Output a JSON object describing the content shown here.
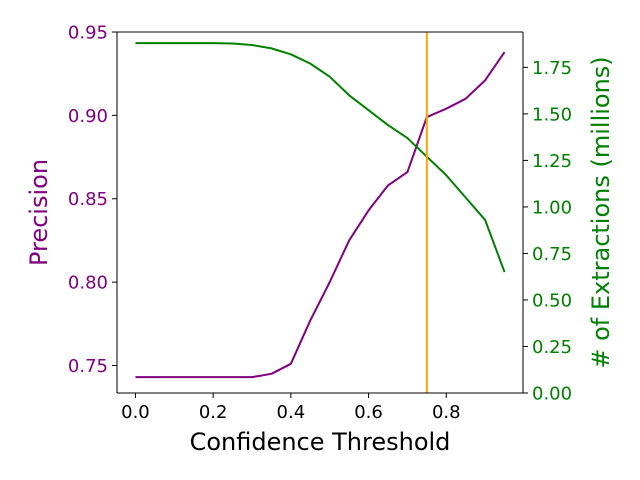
{
  "chart_data": {
    "type": "line",
    "xlabel": "Confidence Threshold",
    "ylabel_left": "Precision",
    "ylabel_right": "# of Extractions (millions)",
    "xlim": [
      -0.0475,
      0.9975
    ],
    "ylim_left": [
      0.7335,
      0.95
    ],
    "ylim_right": [
      0.0,
      1.94
    ],
    "x_ticks": [
      0.0,
      0.2,
      0.4,
      0.6,
      0.8
    ],
    "x_tick_labels": [
      "0.0",
      "0.2",
      "0.4",
      "0.6",
      "0.8"
    ],
    "y_left_ticks": [
      0.75,
      0.8,
      0.85,
      0.9,
      0.95
    ],
    "y_left_tick_labels": [
      "0.75",
      "0.80",
      "0.85",
      "0.90",
      "0.95"
    ],
    "y_right_ticks": [
      0.0,
      0.25,
      0.5,
      0.75,
      1.0,
      1.25,
      1.5,
      1.75
    ],
    "y_right_tick_labels": [
      "0.00",
      "0.25",
      "0.50",
      "0.75",
      "1.00",
      "1.25",
      "1.50",
      "1.75"
    ],
    "vline_x": 0.75,
    "grid": false,
    "colors": {
      "precision": "#800080",
      "extractions": "#008000",
      "vline": "#FFA500",
      "left_axis_text": "#800080",
      "right_axis_text": "#008000"
    },
    "series": [
      {
        "axis": "left",
        "color_key": "precision",
        "x": [
          0.0,
          0.05,
          0.1,
          0.15,
          0.2,
          0.25,
          0.3,
          0.35,
          0.4,
          0.45,
          0.5,
          0.55,
          0.6,
          0.65,
          0.7,
          0.75,
          0.8,
          0.85,
          0.9,
          0.95
        ],
        "values": [
          0.743,
          0.743,
          0.743,
          0.743,
          0.743,
          0.743,
          0.743,
          0.745,
          0.751,
          0.777,
          0.8,
          0.825,
          0.843,
          0.858,
          0.866,
          0.899,
          0.904,
          0.91,
          0.921,
          0.938
        ]
      },
      {
        "axis": "right",
        "color_key": "extractions",
        "x": [
          0.0,
          0.05,
          0.1,
          0.15,
          0.2,
          0.25,
          0.3,
          0.35,
          0.4,
          0.45,
          0.5,
          0.55,
          0.6,
          0.65,
          0.7,
          0.75,
          0.8,
          0.85,
          0.9,
          0.95
        ],
        "values": [
          1.88,
          1.88,
          1.88,
          1.88,
          1.88,
          1.878,
          1.87,
          1.852,
          1.82,
          1.77,
          1.7,
          1.6,
          1.52,
          1.44,
          1.37,
          1.27,
          1.17,
          1.05,
          0.93,
          0.65
        ]
      }
    ]
  }
}
